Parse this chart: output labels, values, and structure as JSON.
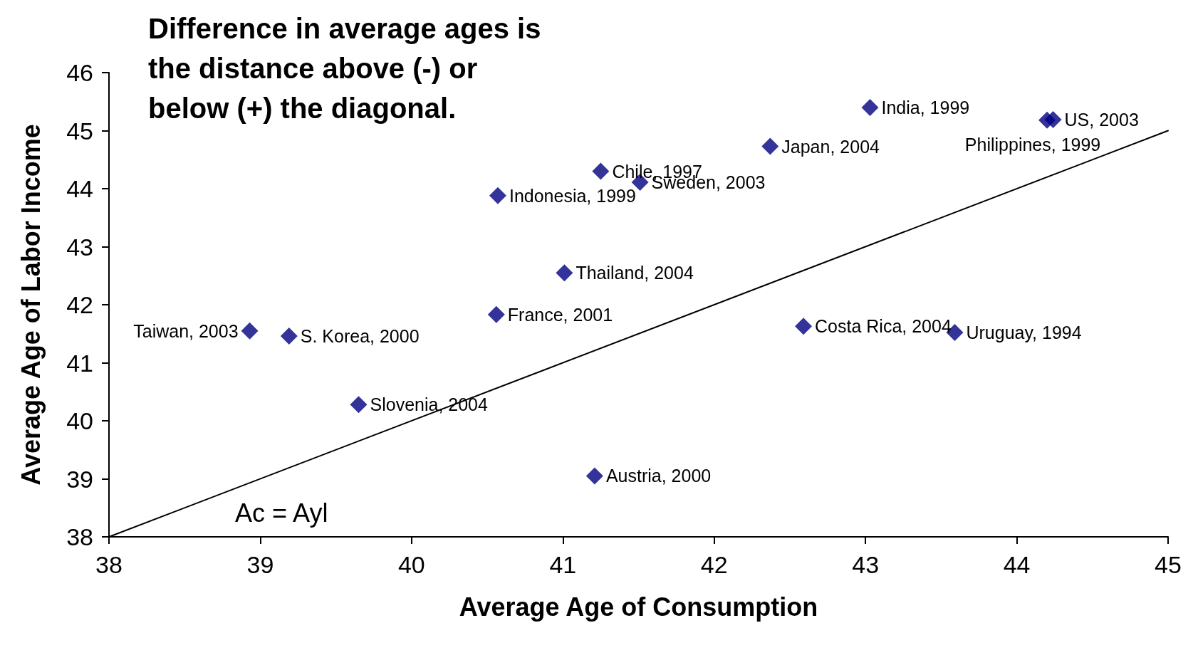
{
  "chart_data": {
    "type": "scatter",
    "xlabel": "Average Age of Consumption",
    "ylabel": "Average Age of Labor Income",
    "series": [
      {
        "color": "#000080",
        "x": [
          38.93,
          39.19,
          39.65,
          40.56,
          40.57,
          41.01,
          41.25,
          41.51,
          41.21,
          42.37,
          43.03,
          42.59,
          43.59,
          44.24,
          44.2
        ],
        "values": [
          41.55,
          41.46,
          40.28,
          41.83,
          43.88,
          42.55,
          44.3,
          44.11,
          39.05,
          44.73,
          45.4,
          41.63,
          41.52,
          45.19,
          45.18
        ]
      },
      {
        "type": "line",
        "marker": "none",
        "color": "#000000",
        "x": [
          38,
          45
        ],
        "values": [
          38,
          45
        ]
      }
    ],
    "annotations": [
      "Difference in average ages is the distance above (-) or below (+) the diagonal.",
      {
        "text": "Taiwan, 2003",
        "x": 38.93,
        "y": 41.55
      },
      {
        "text": "S. Korea, 2000",
        "x": 39.19,
        "y": 41.46
      },
      {
        "text": "Slovenia, 2004",
        "x": 39.65,
        "y": 40.28
      },
      {
        "text": "France, 2001",
        "x": 40.56,
        "y": 41.83
      },
      {
        "text": "Indonesia, 1999",
        "x": 40.57,
        "y": 43.88
      },
      {
        "text": "Thailand, 2004",
        "x": 41.01,
        "y": 42.55
      },
      {
        "text": "Chile, 1997",
        "x": 41.25,
        "y": 44.3
      },
      {
        "text": "Sweden, 2003",
        "x": 41.51,
        "y": 44.11
      },
      {
        "text": "Austria, 2000",
        "x": 41.21,
        "y": 39.05
      },
      {
        "text": "Japan, 2004",
        "x": 42.37,
        "y": 44.73
      },
      {
        "text": "India, 1999",
        "x": 43.03,
        "y": 45.4
      },
      {
        "text": "Costa Rica, 2004",
        "x": 42.59,
        "y": 41.63
      },
      {
        "text": "Uruguay, 1994",
        "x": 43.59,
        "y": 41.52
      },
      {
        "text": "US, 2003",
        "x": 44.24,
        "y": 45.19
      },
      {
        "text": "Philippines, 1999",
        "x": 44.2,
        "y": 45.18
      },
      "Ac = Ayl"
    ],
    "xlim": [
      38,
      45
    ],
    "xticks": [
      38,
      39,
      40,
      41,
      42,
      43,
      44,
      45
    ],
    "ylim": [
      38,
      46
    ],
    "yticks": [
      38,
      39,
      40,
      41,
      42,
      43,
      44,
      45,
      46
    ],
    "grid": false,
    "marker": "diamond",
    "line_style": "solid"
  }
}
